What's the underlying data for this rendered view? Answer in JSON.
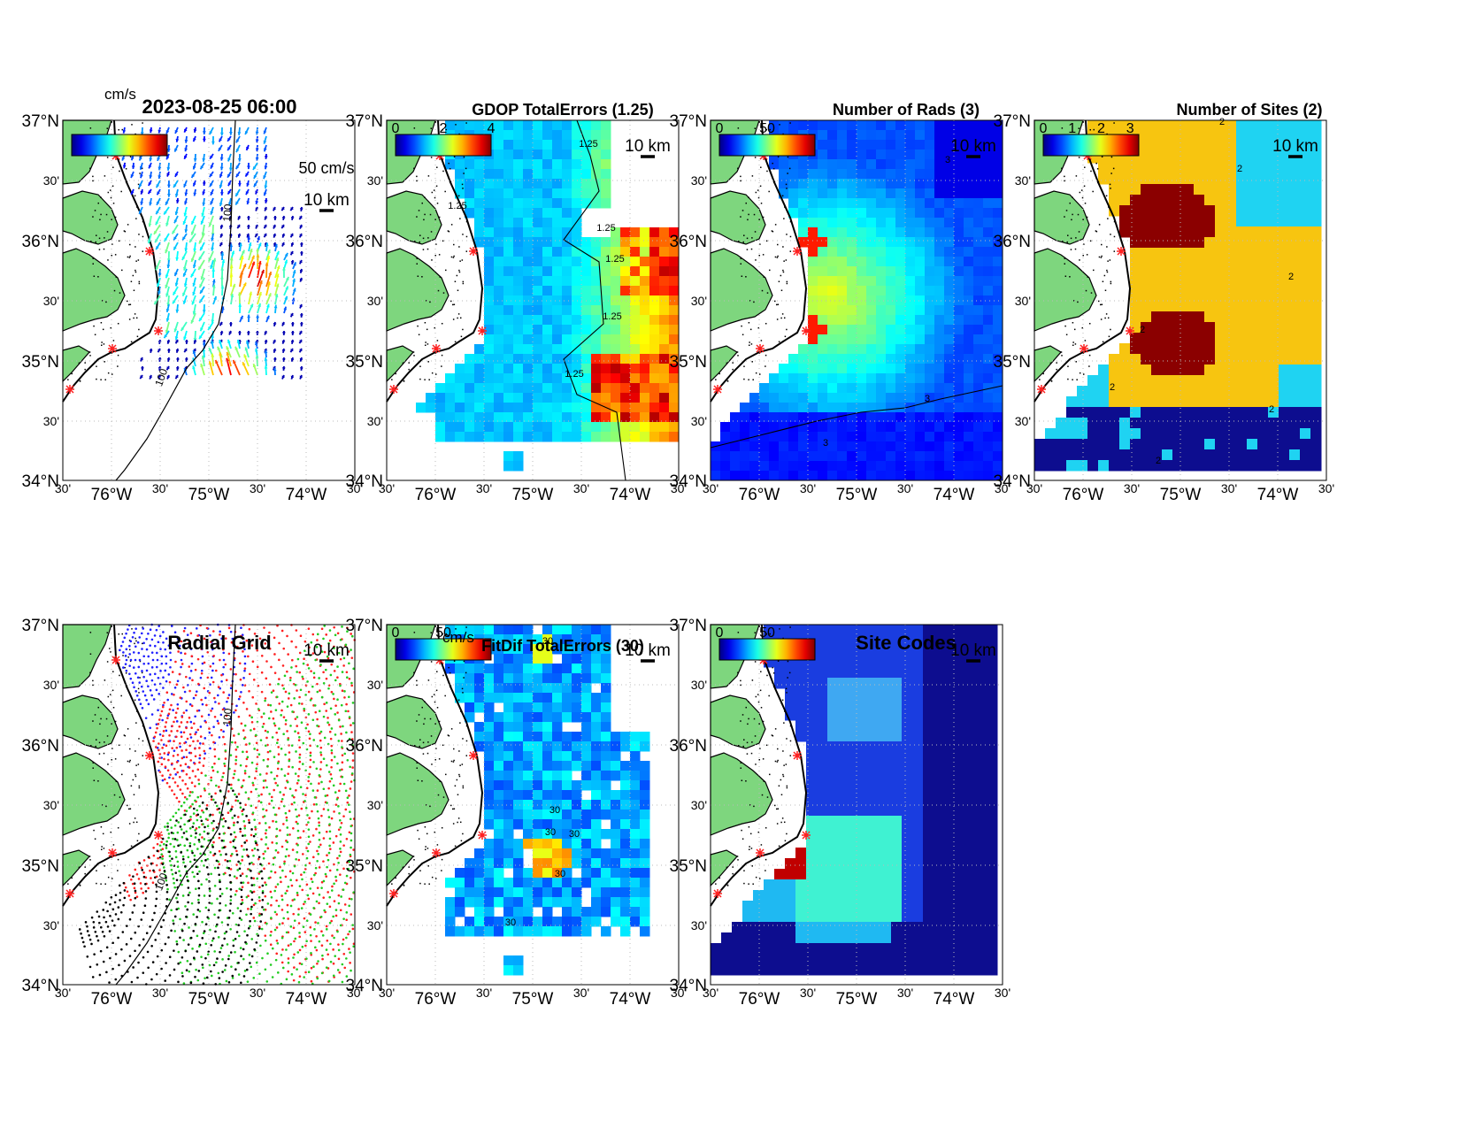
{
  "figure": {
    "timestamp": "2023-08-25 06:00",
    "axes": {
      "lat_ticks": [
        "37°N",
        "30'",
        "36°N",
        "30'",
        "35°N",
        "30'",
        "34°N"
      ],
      "lon_ticks": [
        "30'",
        "76°W",
        "30'",
        "75°W",
        "30'",
        "74°W",
        "30'"
      ]
    },
    "scale_bar_label": "10 km",
    "vector_scale_label": "50 cm/s",
    "colorbar_unit": "cm/s",
    "isobath_label": "100"
  },
  "panels": [
    {
      "id": "totals",
      "title": "2023-08-25 06:00",
      "colorbar_ticks": [],
      "contour_labels": [
        "100",
        "100"
      ]
    },
    {
      "id": "gdop",
      "title": "GDOP TotalErrors (1.25)",
      "colorbar_ticks": [
        "0",
        "2",
        "4"
      ],
      "contour_labels": [
        "1.25",
        "1.25",
        "1.25",
        "1.25",
        "1.25",
        "1.25"
      ]
    },
    {
      "id": "nrads",
      "title": "Number of Rads (3)",
      "colorbar_ticks": [
        "0",
        "50"
      ],
      "contour_labels": [
        "3",
        "3",
        "3"
      ]
    },
    {
      "id": "nsites",
      "title": "Number of Sites (2)",
      "colorbar_ticks": [
        "0",
        "1",
        "2",
        "3"
      ],
      "contour_labels": [
        "2",
        "2",
        "2",
        "2",
        "2",
        "2",
        "2"
      ]
    },
    {
      "id": "radgrid",
      "title": "Radial Grid",
      "colorbar_ticks": [],
      "contour_labels": [
        "100",
        "100"
      ]
    },
    {
      "id": "fitdif",
      "title": "FitDif TotalErrors (30)",
      "colorbar_ticks": [
        "0",
        "50"
      ],
      "contour_labels": [
        "30",
        "30",
        "30",
        "30",
        "30",
        "30"
      ]
    },
    {
      "id": "sitecodes",
      "title": "Site Codes",
      "colorbar_ticks": [
        "0",
        "50"
      ],
      "contour_labels": []
    }
  ],
  "colors": {
    "land": "#7ed67e",
    "coastline": "#000000",
    "site_marker": "#ff2020",
    "nsites_1": "#1fd3f2",
    "nsites_2": "#f7c510",
    "nsites_3": "#8b0000",
    "nsites_0": "#0d0d8f"
  }
}
